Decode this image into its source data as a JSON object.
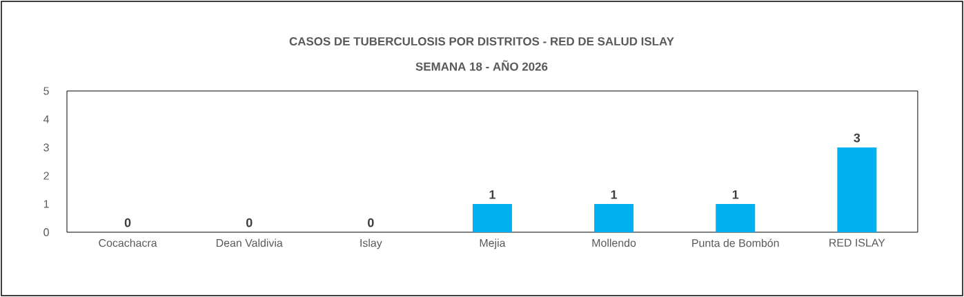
{
  "chart_data": {
    "type": "bar",
    "title": "CASOS DE TUBERCULOSIS POR DISTRITOS  - RED DE SALUD ISLAY",
    "subtitle": "SEMANA 18 -  AÑO 2026",
    "categories": [
      "Cocachacra",
      "Dean Valdivia",
      "Islay",
      "Mejia",
      "Mollendo",
      "Punta de Bombón",
      "RED ISLAY"
    ],
    "values": [
      0,
      0,
      0,
      1,
      1,
      1,
      3
    ],
    "color": "#00b0f0",
    "ylim": [
      0,
      5
    ],
    "yticks": [
      0,
      1,
      2,
      3,
      4,
      5
    ],
    "data_labels": true
  }
}
